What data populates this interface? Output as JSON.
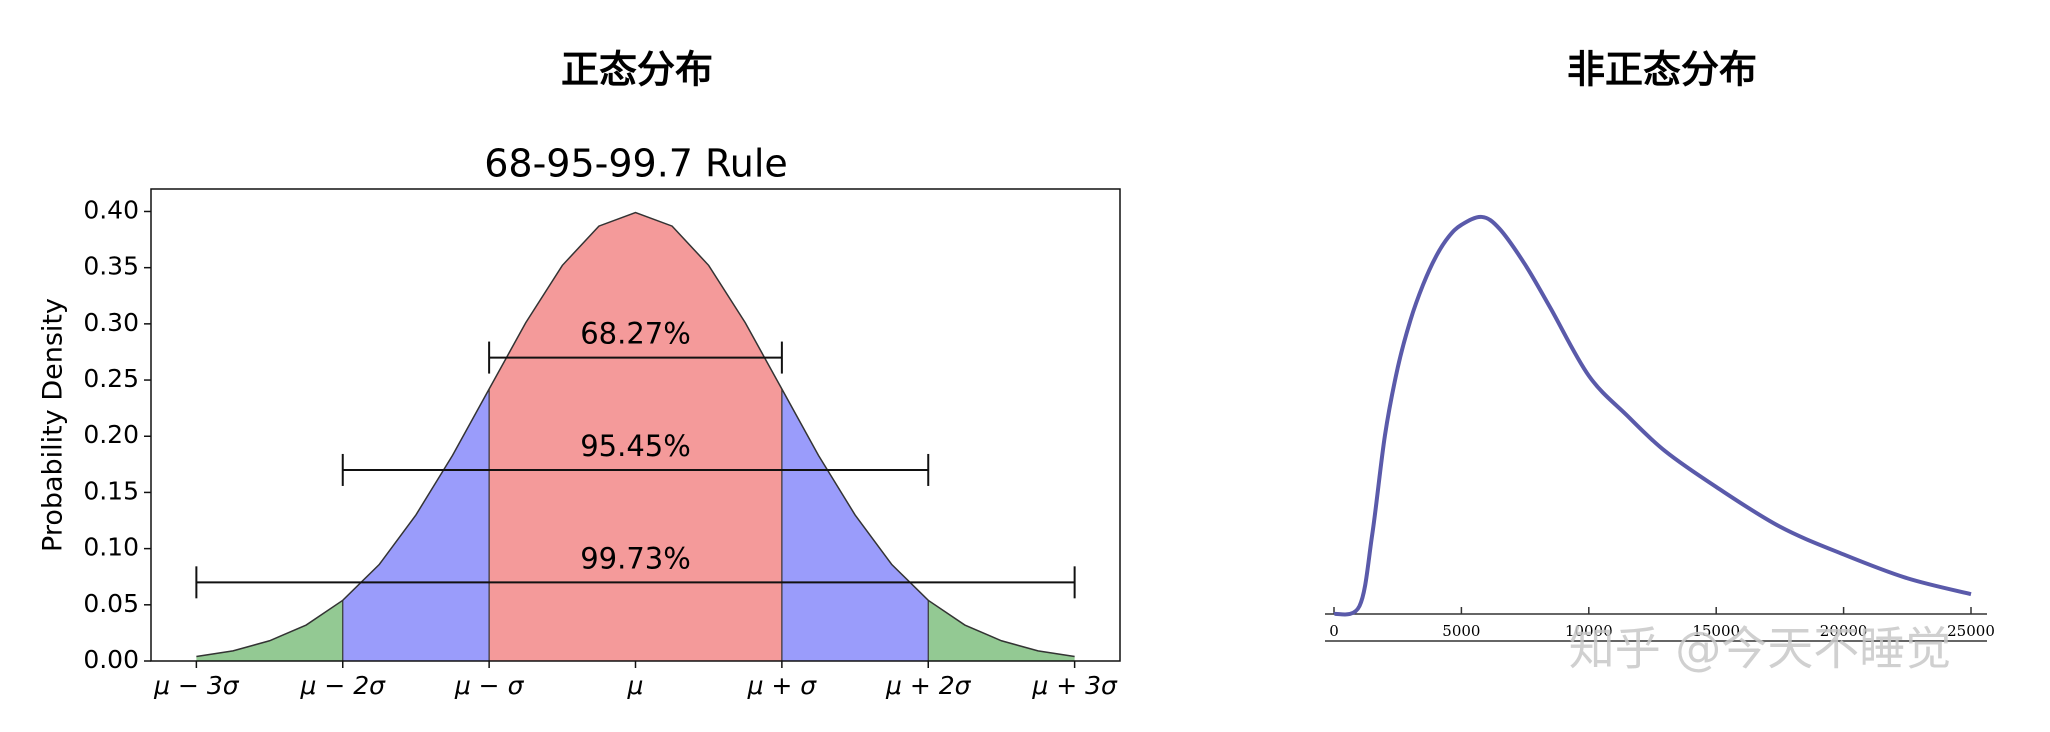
{
  "chart_data": [
    {
      "type": "area",
      "panel_title": "正态分布",
      "title": "68-95-99.7 Rule",
      "y_label": "Probability Density",
      "x": [
        -3,
        -2.75,
        -2.5,
        -2.25,
        -2,
        -1.75,
        -1.5,
        -1.25,
        -1,
        -0.75,
        -0.5,
        -0.25,
        0,
        0.25,
        0.5,
        0.75,
        1,
        1.25,
        1.5,
        1.75,
        2,
        2.25,
        2.5,
        2.75,
        3
      ],
      "values": [
        0.004,
        0.009,
        0.018,
        0.032,
        0.054,
        0.086,
        0.13,
        0.183,
        0.242,
        0.301,
        0.352,
        0.387,
        0.399,
        0.387,
        0.352,
        0.301,
        0.242,
        0.183,
        0.13,
        0.086,
        0.054,
        0.032,
        0.018,
        0.009,
        0.004
      ],
      "color": "#333333",
      "bands": [
        {
          "from": -3,
          "to": -2,
          "color": "#93c993"
        },
        {
          "from": -2,
          "to": -1,
          "color": "#9a9cfb"
        },
        {
          "from": -1,
          "to": 1,
          "color": "#f49a9a"
        },
        {
          "from": 1,
          "to": 2,
          "color": "#9a9cfb"
        },
        {
          "from": 2,
          "to": 3,
          "color": "#93c993"
        }
      ],
      "intervals": [
        {
          "label": "68.27%",
          "from": -1,
          "to": 1,
          "y": 0.27
        },
        {
          "label": "95.45%",
          "from": -2,
          "to": 2,
          "y": 0.17
        },
        {
          "label": "99.73%",
          "from": -3,
          "to": 3,
          "y": 0.07
        }
      ],
      "xlim": [
        -3.31,
        3.31
      ],
      "ylim": [
        0,
        0.42
      ],
      "xticks": [
        {
          "value": -3,
          "label": "μ − 3σ"
        },
        {
          "value": -2,
          "label": "μ − 2σ"
        },
        {
          "value": -1,
          "label": "μ − σ"
        },
        {
          "value": 0,
          "label": "μ"
        },
        {
          "value": 1,
          "label": "μ + σ"
        },
        {
          "value": 2,
          "label": "μ + 2σ"
        },
        {
          "value": 3,
          "label": "μ + 3σ"
        }
      ],
      "yticks": [
        {
          "value": 0,
          "label": "0.00"
        },
        {
          "value": 0.05,
          "label": "0.05"
        },
        {
          "value": 0.1,
          "label": "0.10"
        },
        {
          "value": 0.15,
          "label": "0.15"
        },
        {
          "value": 0.2,
          "label": "0.20"
        },
        {
          "value": 0.25,
          "label": "0.25"
        },
        {
          "value": 0.3,
          "label": "0.30"
        },
        {
          "value": 0.35,
          "label": "0.35"
        },
        {
          "value": 0.4,
          "label": "0.40"
        }
      ]
    },
    {
      "type": "line",
      "panel_title": "非正态分布",
      "x": [
        0,
        1000,
        1500,
        2000,
        2500,
        3000,
        3500,
        4000,
        4500,
        5000,
        5800,
        6500,
        7500,
        8500,
        10000,
        11500,
        13000,
        15000,
        17500,
        20000,
        22500,
        25000
      ],
      "values": [
        0,
        0.02,
        0.2,
        0.45,
        0.62,
        0.74,
        0.83,
        0.9,
        0.95,
        0.98,
        1.0,
        0.97,
        0.88,
        0.77,
        0.6,
        0.5,
        0.41,
        0.32,
        0.22,
        0.15,
        0.09,
        0.05
      ],
      "color": "#5a5aaa",
      "xlim": [
        0,
        25000
      ],
      "ylim": [
        0,
        1.02
      ],
      "xticks": [
        0,
        5000,
        10000,
        15000,
        20000,
        25000
      ]
    }
  ],
  "watermark": "知乎 @今天不睡觉"
}
